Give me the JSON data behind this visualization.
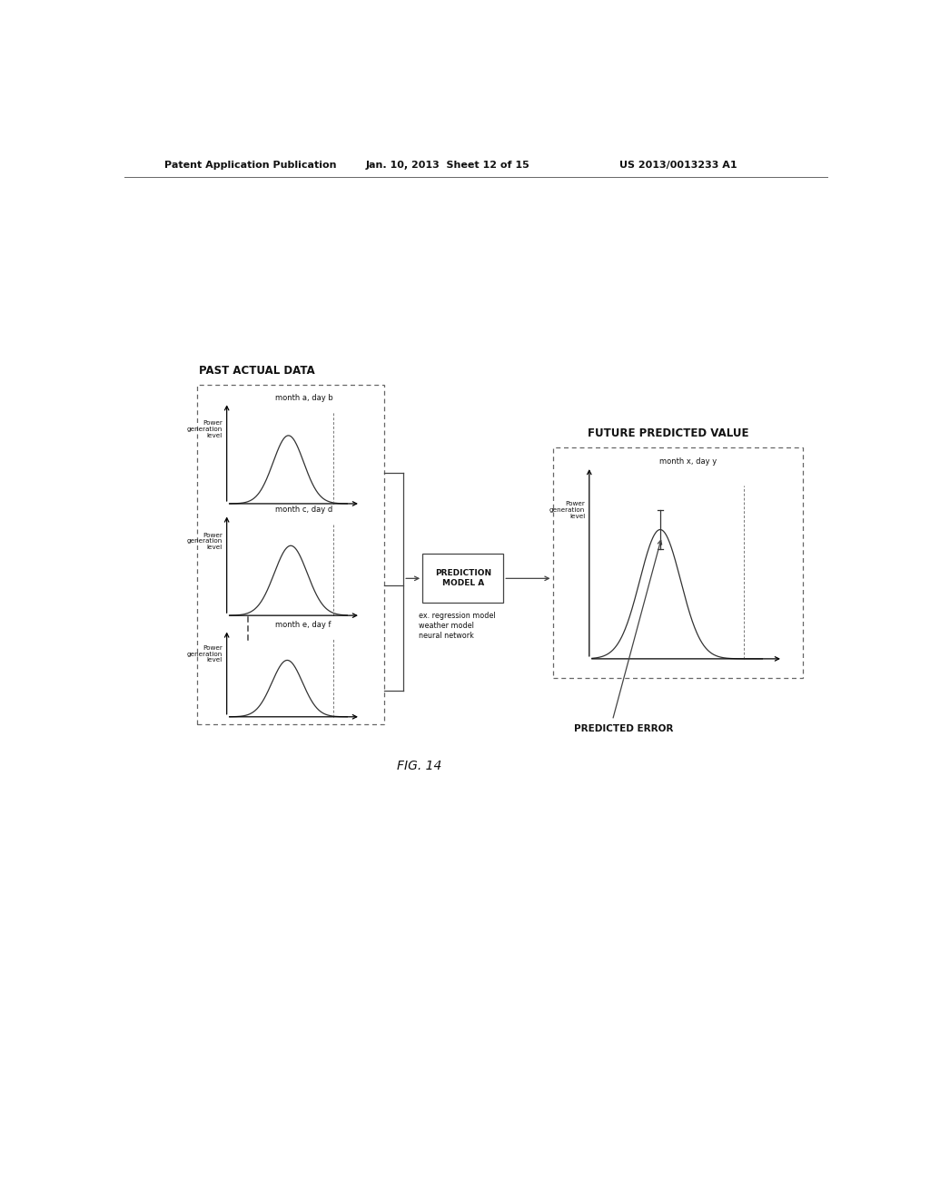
{
  "bg_color": "#ffffff",
  "header_left": "Patent Application Publication",
  "header_mid": "Jan. 10, 2013  Sheet 12 of 15",
  "header_right": "US 2013/0013233 A1",
  "fig_label": "FIG. 14",
  "past_box_label": "PAST ACTUAL DATA",
  "future_box_label": "FUTURE PREDICTED VALUE",
  "prediction_box_label": "PREDICTION\nMODEL A",
  "ex_text": "ex. regression model\nweather model\nneural network",
  "predicted_error_label": "PREDICTED ERROR",
  "graph1_ylabel": "Power\ngeneration\nlevel",
  "graph1_xlabel": "month a, day b",
  "graph2_ylabel": "Power\ngeneration\nlevel",
  "graph2_xlabel": "month c, day d",
  "graph3_ylabel": "Power\ngeneration\nlevel",
  "graph3_xlabel": "month e, day f",
  "graphF_ylabel": "Power\ngeneration\nlevel",
  "graphF_xlabel": "month x, day y"
}
